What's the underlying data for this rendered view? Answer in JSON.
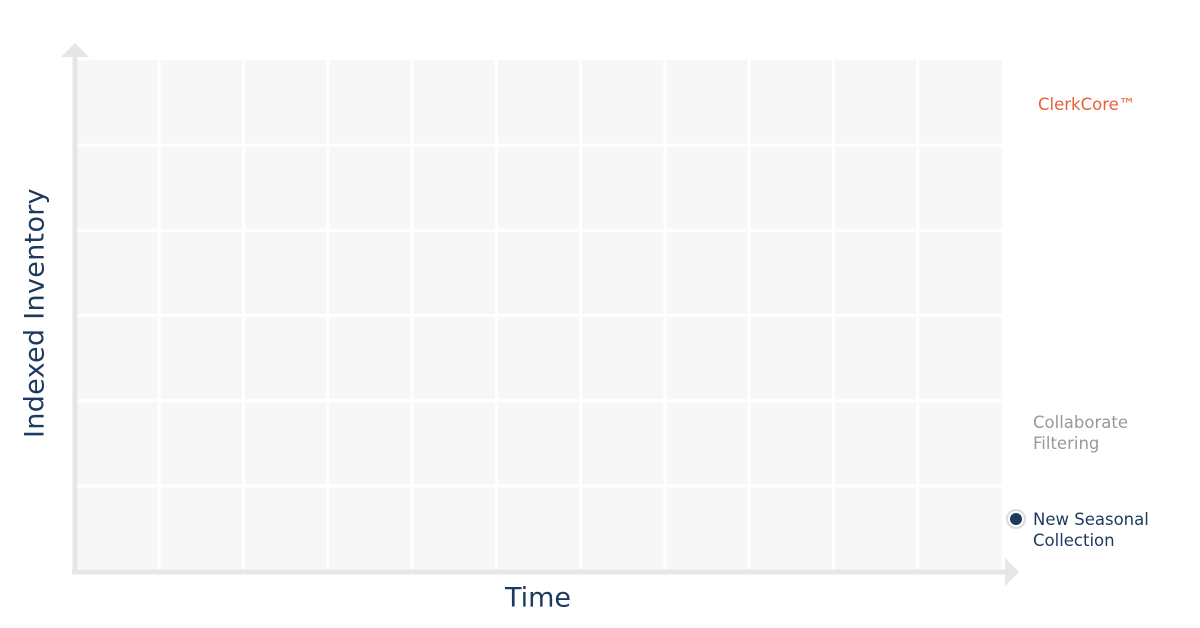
{
  "chart_data": {
    "type": "line",
    "title": "",
    "xlabel": "Time",
    "ylabel": "Indexed Inventory",
    "grid": true,
    "series": [
      {
        "name": "ClerkCore™",
        "color": "#e8603a",
        "marker": false
      },
      {
        "name": "Collaborate Filtering",
        "color": "#999999",
        "marker": false
      },
      {
        "name": "New Seasonal Collection",
        "color": "#1c3a5e",
        "marker": true
      }
    ]
  }
}
